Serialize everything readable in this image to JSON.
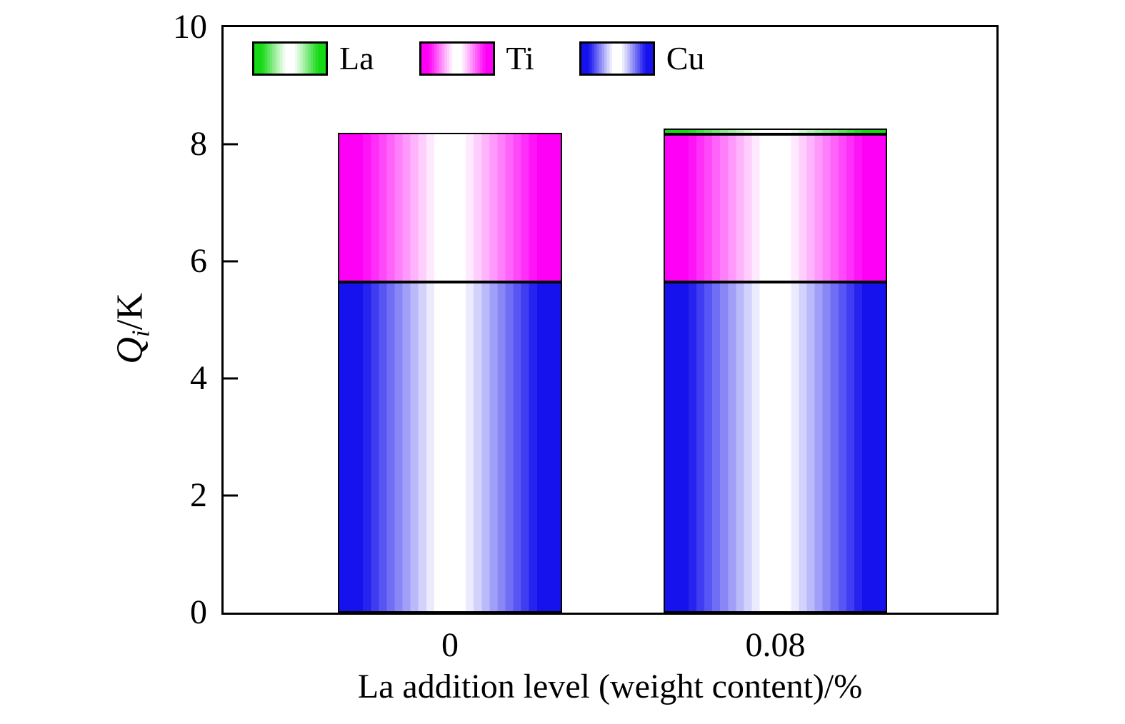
{
  "chart_data": {
    "type": "bar",
    "stacked": true,
    "title": "",
    "categories": [
      "0",
      "0.08"
    ],
    "series": [
      {
        "name": "Cu",
        "color": "#1512ee",
        "values": [
          5.65,
          5.65
        ]
      },
      {
        "name": "Ti",
        "color": "#ff00f6",
        "values": [
          2.55,
          2.52
        ]
      },
      {
        "name": "La",
        "color": "#16d916",
        "values": [
          0,
          0.1
        ]
      }
    ],
    "totals": [
      8.2,
      8.27
    ],
    "xlabel": "La addition level (weight content)/%",
    "ylabel": "Qi/K",
    "ylabel_parts": {
      "symbol": "Q",
      "subscript": "i",
      "unit": "/K"
    },
    "ylim": [
      0,
      10
    ],
    "yticks": [
      0,
      2,
      4,
      6,
      8,
      10
    ],
    "grid": false,
    "legend": {
      "order": [
        "La",
        "Ti",
        "Cu"
      ],
      "position": "inside-top-left"
    },
    "style": {
      "axis_color": "#000000",
      "bar_outline": "#000000",
      "bar_fill": "banded horizontal gradient color-white-color"
    }
  }
}
